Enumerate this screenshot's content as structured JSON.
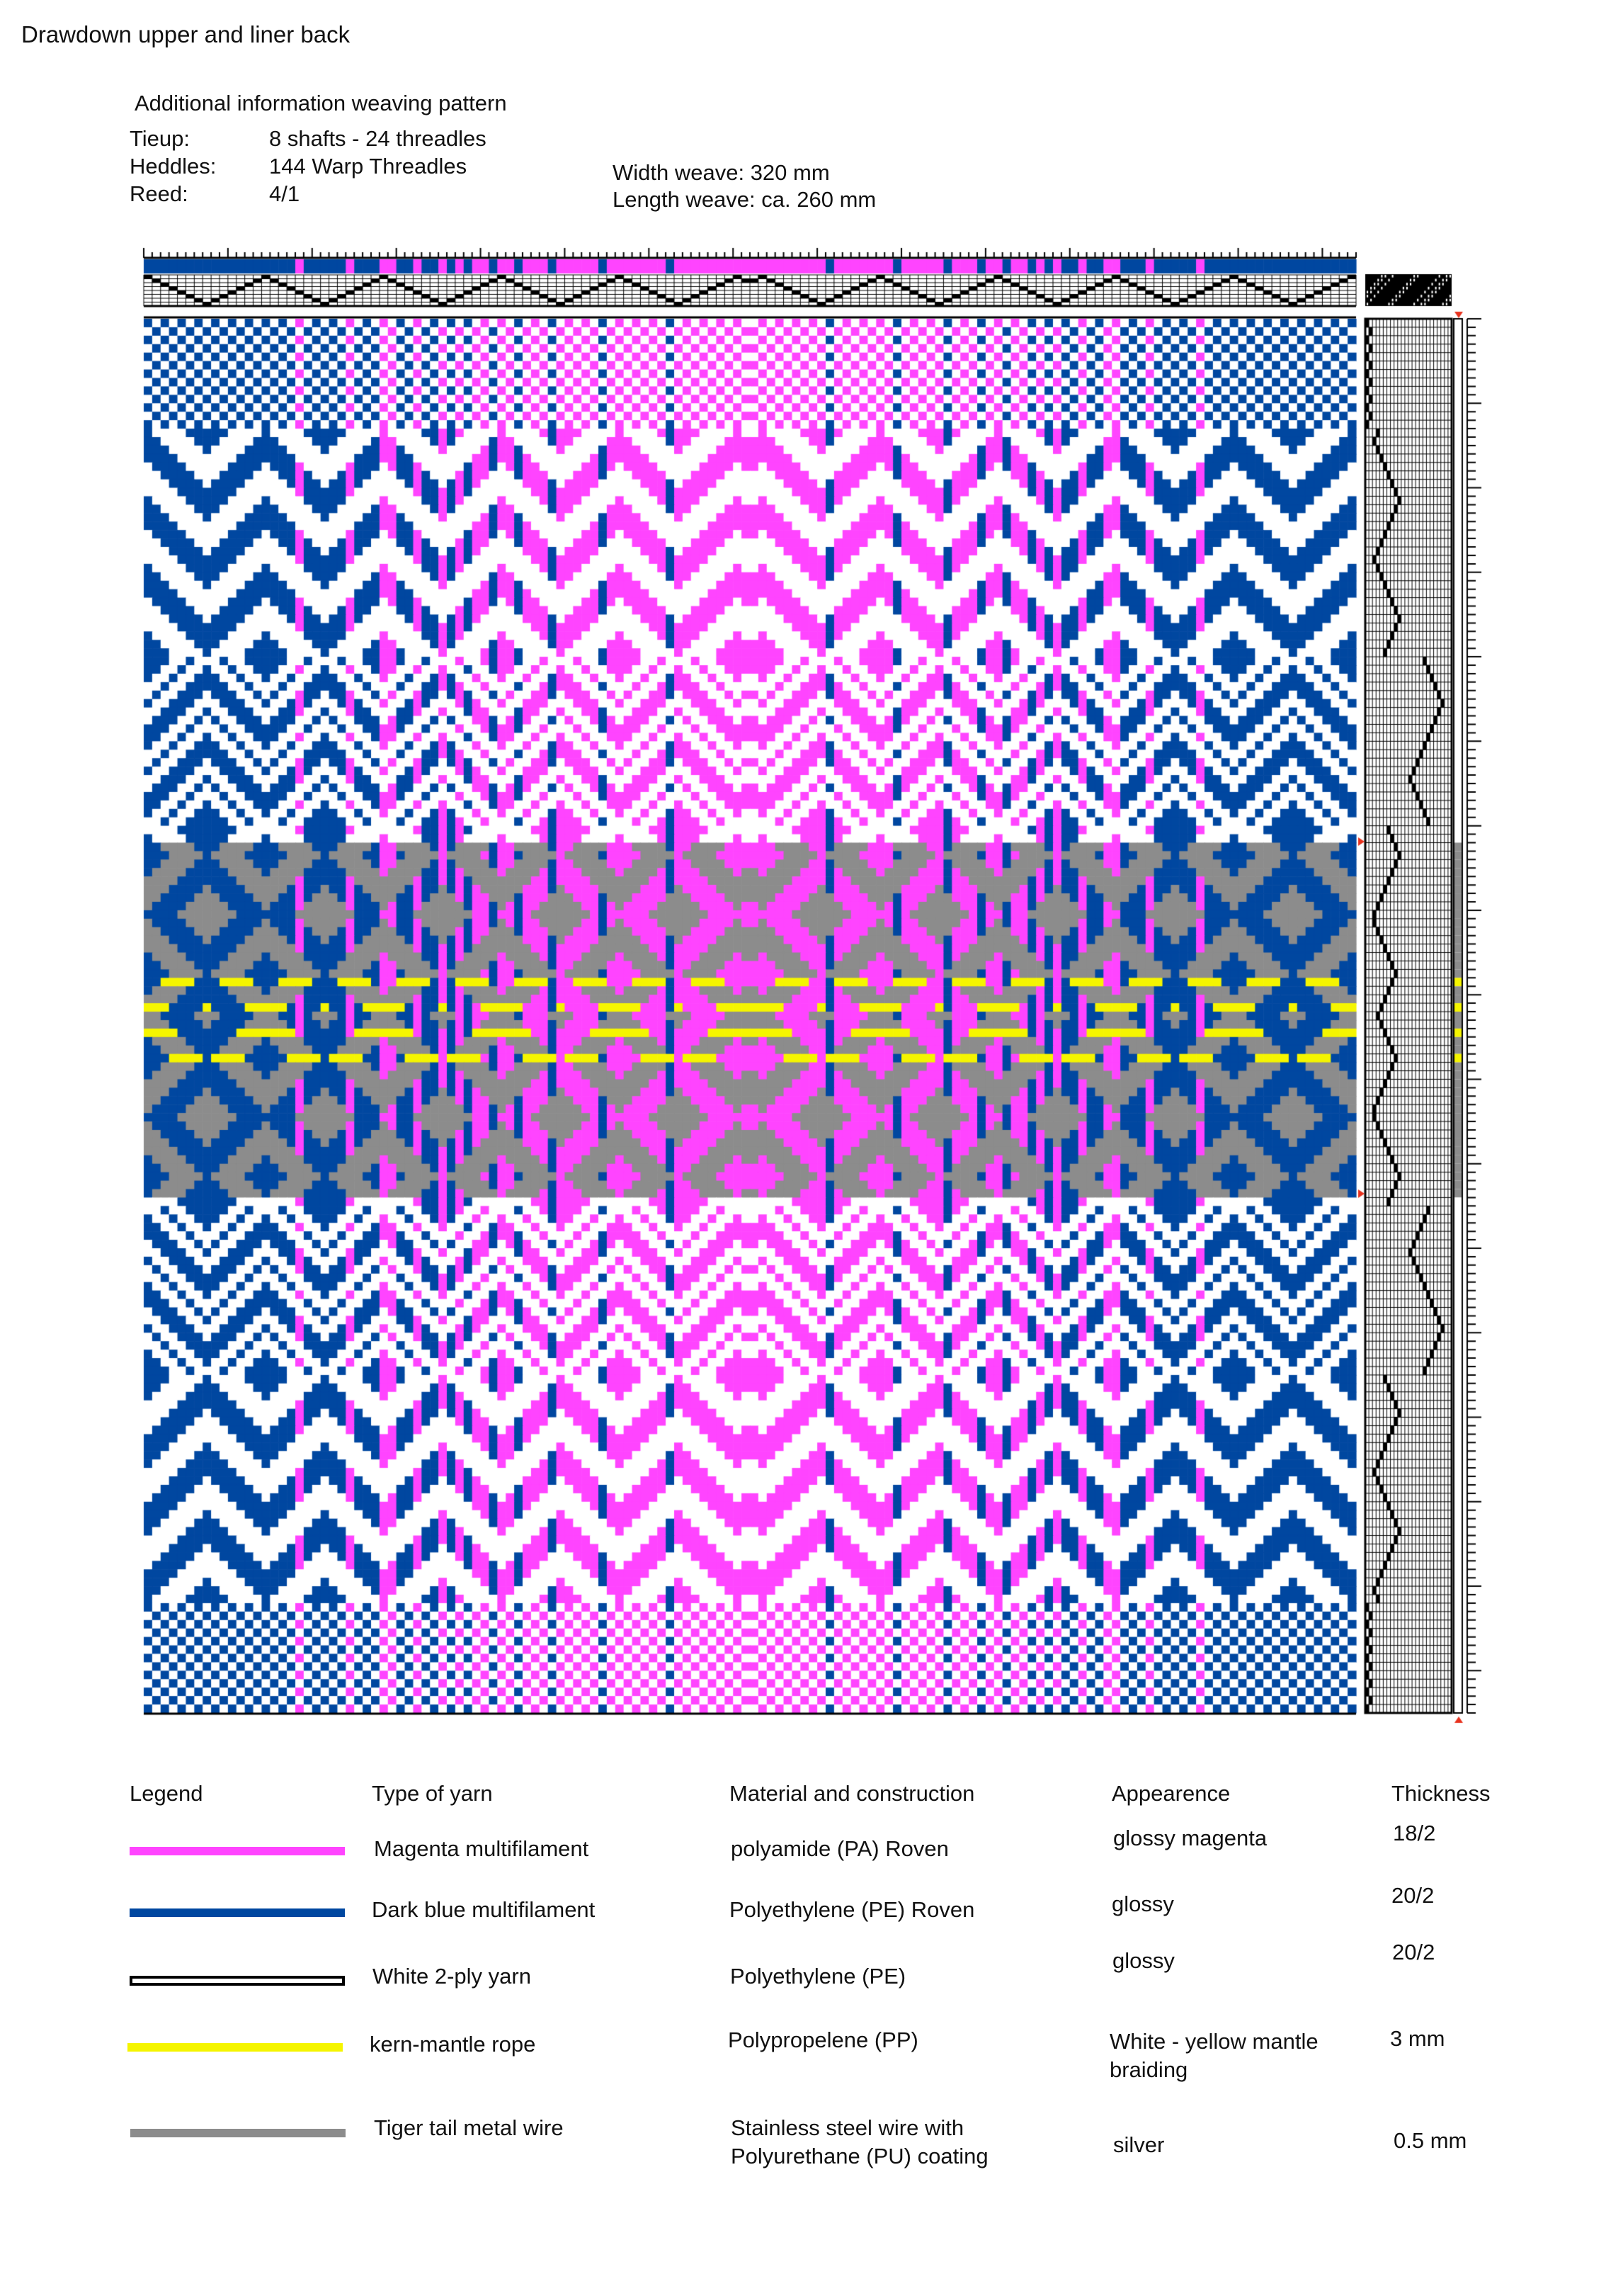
{
  "title": "Drawdown upper and liner back",
  "info": {
    "heading": "Additional information weaving pattern",
    "tieup_label": "Tieup:",
    "tieup_value": "8 shafts - 24 threadles",
    "heddles_label": "Heddles:",
    "heddles_value": "144 Warp Threadles",
    "reed_label": "Reed:",
    "reed_value": "4/1",
    "width": "Width weave: 320 mm",
    "length": "Length weave: ca. 260 mm"
  },
  "draft": {
    "warp_ends": 144,
    "shafts": 8,
    "treadles": 24,
    "warp_color_sequence_left_half": "BBBBBBBBBBBBBBBBBBMBBBBBMBBBMMBBMBBMBMBMMBMMBMMMBMMMMMBMMMMMMMBMMMMMMMMM",
    "weft_regions": [
      "white",
      "gray",
      "gray+yellow",
      "gray",
      "white"
    ]
  },
  "colors": {
    "magenta": "#ff44ff",
    "blue": "#0047a0",
    "white": "#ffffff",
    "yellow": "#f5f500",
    "gray": "#8c8c8c",
    "marker": "#e8321e"
  },
  "legend": {
    "headers": {
      "legend": "Legend",
      "type": "Type of yarn",
      "material": "Material and construction",
      "appearance": "Appearence",
      "thickness": "Thickness"
    },
    "rows": [
      {
        "type": "Magenta multifilament",
        "material": "polyamide (PA) Roven",
        "appearance": "glossy magenta",
        "thickness": "18/2"
      },
      {
        "type": "Dark blue multifilament",
        "material": "Polyethylene (PE) Roven",
        "appearance": "glossy",
        "thickness": "20/2"
      },
      {
        "type": "White 2-ply yarn",
        "material": "Polyethylene (PE)",
        "appearance": "glossy",
        "thickness": "20/2"
      },
      {
        "type": "kern-mantle rope",
        "material": "Polypropelene (PP)",
        "appearance": "White - yellow mantle braiding",
        "thickness": "3 mm"
      },
      {
        "type": "Tiger tail metal wire",
        "material": "Stainless steel wire with Polyurethane (PU) coating",
        "appearance": "silver",
        "thickness": "0.5 mm"
      }
    ]
  }
}
